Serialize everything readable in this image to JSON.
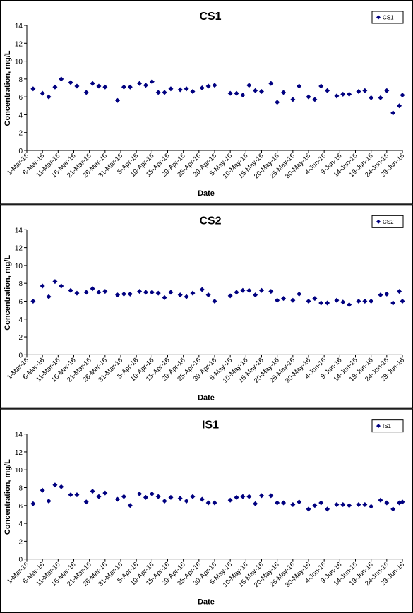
{
  "chart_data": [
    {
      "type": "scatter",
      "title": "CS1",
      "x_label": "Date",
      "y_label": "Concentration, mg/L",
      "legend": "top-right",
      "xlim": [
        "2016-03-01",
        "2016-06-29"
      ],
      "ylim": [
        0,
        14
      ],
      "yticks": [
        0,
        2,
        4,
        6,
        8,
        10,
        12,
        14
      ],
      "xticks": [
        {
          "value": "2016-03-01",
          "label": "1-Mar-16"
        },
        {
          "value": "2016-03-06",
          "label": "6-Mar-16"
        },
        {
          "value": "2016-03-11",
          "label": "11-Mar-16"
        },
        {
          "value": "2016-03-16",
          "label": "16-Mar-16"
        },
        {
          "value": "2016-03-21",
          "label": "21-Mar-16"
        },
        {
          "value": "2016-03-26",
          "label": "26-Mar-16"
        },
        {
          "value": "2016-03-31",
          "label": "31-Mar-16"
        },
        {
          "value": "2016-04-05",
          "label": "5-Apr-16"
        },
        {
          "value": "2016-04-10",
          "label": "10-Apr-16"
        },
        {
          "value": "2016-04-15",
          "label": "15-Apr-16"
        },
        {
          "value": "2016-04-20",
          "label": "20-Apr-16"
        },
        {
          "value": "2016-04-25",
          "label": "25-Apr-16"
        },
        {
          "value": "2016-04-30",
          "label": "30-Apr-16"
        },
        {
          "value": "2016-05-05",
          "label": "5-May-16"
        },
        {
          "value": "2016-05-10",
          "label": "10-May-16"
        },
        {
          "value": "2016-05-15",
          "label": "15-May-16"
        },
        {
          "value": "2016-05-20",
          "label": "20-May-16"
        },
        {
          "value": "2016-05-25",
          "label": "25-May-16"
        },
        {
          "value": "2016-05-30",
          "label": "30-May-16"
        },
        {
          "value": "2016-06-04",
          "label": "4-Jun-16"
        },
        {
          "value": "2016-06-09",
          "label": "9-Jun-16"
        },
        {
          "value": "2016-06-14",
          "label": "14-Jun-16"
        },
        {
          "value": "2016-06-19",
          "label": "19-Jun-16"
        },
        {
          "value": "2016-06-24",
          "label": "24-Jun-16"
        },
        {
          "value": "2016-06-29",
          "label": "29-Jun-16"
        }
      ],
      "x": [
        "2016-03-03",
        "2016-03-06",
        "2016-03-08",
        "2016-03-10",
        "2016-03-12",
        "2016-03-15",
        "2016-03-17",
        "2016-03-20",
        "2016-03-22",
        "2016-03-24",
        "2016-03-26",
        "2016-03-30",
        "2016-04-01",
        "2016-04-03",
        "2016-04-06",
        "2016-04-08",
        "2016-04-10",
        "2016-04-12",
        "2016-04-14",
        "2016-04-16",
        "2016-04-19",
        "2016-04-21",
        "2016-04-23",
        "2016-04-26",
        "2016-04-28",
        "2016-04-30",
        "2016-05-05",
        "2016-05-07",
        "2016-05-09",
        "2016-05-11",
        "2016-05-13",
        "2016-05-15",
        "2016-05-18",
        "2016-05-20",
        "2016-05-22",
        "2016-05-25",
        "2016-05-27",
        "2016-05-30",
        "2016-06-01",
        "2016-06-03",
        "2016-06-05",
        "2016-06-08",
        "2016-06-10",
        "2016-06-12",
        "2016-06-15",
        "2016-06-17",
        "2016-06-19",
        "2016-06-22",
        "2016-06-24",
        "2016-06-26",
        "2016-06-28",
        "2016-06-29"
      ],
      "series": [
        {
          "name": "CS1",
          "color": "#000080",
          "values": [
            6.9,
            6.4,
            6.0,
            7.1,
            8.0,
            7.6,
            7.2,
            6.5,
            7.5,
            7.2,
            7.1,
            5.6,
            7.1,
            7.1,
            7.5,
            7.3,
            7.7,
            6.5,
            6.5,
            6.9,
            6.8,
            6.9,
            6.6,
            7.0,
            7.2,
            7.3,
            6.4,
            6.4,
            6.2,
            7.3,
            6.7,
            6.6,
            7.5,
            5.4,
            6.5,
            5.7,
            7.2,
            6.0,
            5.7,
            7.2,
            6.7,
            6.1,
            6.3,
            6.3,
            6.6,
            6.7,
            5.9,
            5.9,
            6.7,
            4.2,
            5.0,
            6.2
          ]
        }
      ]
    },
    {
      "type": "scatter",
      "title": "CS2",
      "x_label": "Date",
      "y_label": "Concentration, mg/L",
      "legend": "top-right",
      "xlim": [
        "2016-03-01",
        "2016-06-29"
      ],
      "ylim": [
        0,
        14
      ],
      "yticks": [
        0,
        2,
        4,
        6,
        8,
        10,
        12,
        14
      ],
      "xticks": [
        {
          "value": "2016-03-01",
          "label": "1-Mar-16"
        },
        {
          "value": "2016-03-06",
          "label": "6-Mar-16"
        },
        {
          "value": "2016-03-11",
          "label": "11-Mar-16"
        },
        {
          "value": "2016-03-16",
          "label": "16-Mar-16"
        },
        {
          "value": "2016-03-21",
          "label": "21-Mar-16"
        },
        {
          "value": "2016-03-26",
          "label": "26-Mar-16"
        },
        {
          "value": "2016-03-31",
          "label": "31-Mar-16"
        },
        {
          "value": "2016-04-05",
          "label": "5-Apr-16"
        },
        {
          "value": "2016-04-10",
          "label": "10-Apr-16"
        },
        {
          "value": "2016-04-15",
          "label": "15-Apr-16"
        },
        {
          "value": "2016-04-20",
          "label": "20-Apr-16"
        },
        {
          "value": "2016-04-25",
          "label": "25-Apr-16"
        },
        {
          "value": "2016-04-30",
          "label": "30-Apr-16"
        },
        {
          "value": "2016-05-05",
          "label": "5-May-16"
        },
        {
          "value": "2016-05-10",
          "label": "10-May-16"
        },
        {
          "value": "2016-05-15",
          "label": "15-May-16"
        },
        {
          "value": "2016-05-20",
          "label": "20-May-16"
        },
        {
          "value": "2016-05-25",
          "label": "25-May-16"
        },
        {
          "value": "2016-05-30",
          "label": "30-May-16"
        },
        {
          "value": "2016-06-04",
          "label": "4-Jun-16"
        },
        {
          "value": "2016-06-09",
          "label": "9-Jun-16"
        },
        {
          "value": "2016-06-14",
          "label": "14-Jun-16"
        },
        {
          "value": "2016-06-19",
          "label": "19-Jun-16"
        },
        {
          "value": "2016-06-24",
          "label": "24-Jun-16"
        },
        {
          "value": "2016-06-29",
          "label": "29-Jun-16"
        }
      ],
      "x": [
        "2016-03-03",
        "2016-03-06",
        "2016-03-08",
        "2016-03-10",
        "2016-03-12",
        "2016-03-15",
        "2016-03-17",
        "2016-03-20",
        "2016-03-22",
        "2016-03-24",
        "2016-03-26",
        "2016-03-30",
        "2016-04-01",
        "2016-04-03",
        "2016-04-06",
        "2016-04-08",
        "2016-04-10",
        "2016-04-12",
        "2016-04-14",
        "2016-04-16",
        "2016-04-19",
        "2016-04-21",
        "2016-04-23",
        "2016-04-26",
        "2016-04-28",
        "2016-04-30",
        "2016-05-05",
        "2016-05-07",
        "2016-05-09",
        "2016-05-11",
        "2016-05-13",
        "2016-05-15",
        "2016-05-18",
        "2016-05-20",
        "2016-05-22",
        "2016-05-25",
        "2016-05-27",
        "2016-05-30",
        "2016-06-01",
        "2016-06-03",
        "2016-06-05",
        "2016-06-08",
        "2016-06-10",
        "2016-06-12",
        "2016-06-15",
        "2016-06-17",
        "2016-06-19",
        "2016-06-22",
        "2016-06-24",
        "2016-06-26",
        "2016-06-28",
        "2016-06-29"
      ],
      "series": [
        {
          "name": "CS2",
          "color": "#000080",
          "values": [
            6.0,
            7.7,
            6.5,
            8.2,
            7.7,
            7.2,
            6.9,
            7.0,
            7.4,
            7.0,
            7.1,
            6.7,
            6.8,
            6.8,
            7.1,
            7.0,
            7.0,
            6.9,
            6.4,
            7.0,
            6.7,
            6.5,
            6.9,
            7.3,
            6.7,
            6.0,
            6.6,
            7.0,
            7.2,
            7.2,
            6.7,
            7.2,
            7.1,
            6.1,
            6.3,
            6.1,
            6.8,
            6.0,
            6.3,
            5.8,
            5.8,
            6.1,
            5.9,
            5.6,
            6.0,
            6.0,
            6.0,
            6.7,
            6.8,
            5.8,
            7.1,
            6.0
          ]
        }
      ]
    },
    {
      "type": "scatter",
      "title": "IS1",
      "x_label": "Date",
      "y_label": "Concentration, mg/L",
      "legend": "top-right",
      "xlim": [
        "2016-03-01",
        "2016-06-29"
      ],
      "ylim": [
        0,
        14
      ],
      "yticks": [
        0,
        2,
        4,
        6,
        8,
        10,
        12,
        14
      ],
      "xticks": [
        {
          "value": "2016-03-01",
          "label": "1-Mar-16"
        },
        {
          "value": "2016-03-06",
          "label": "6-Mar-16"
        },
        {
          "value": "2016-03-11",
          "label": "11-Mar-16"
        },
        {
          "value": "2016-03-16",
          "label": "16-Mar-16"
        },
        {
          "value": "2016-03-21",
          "label": "21-Mar-16"
        },
        {
          "value": "2016-03-26",
          "label": "26-Mar-16"
        },
        {
          "value": "2016-03-31",
          "label": "31-Mar-16"
        },
        {
          "value": "2016-04-05",
          "label": "5-Apr-16"
        },
        {
          "value": "2016-04-10",
          "label": "10-Apr-16"
        },
        {
          "value": "2016-04-15",
          "label": "15-Apr-16"
        },
        {
          "value": "2016-04-20",
          "label": "20-Apr-16"
        },
        {
          "value": "2016-04-25",
          "label": "25-Apr-16"
        },
        {
          "value": "2016-04-30",
          "label": "30-Apr-16"
        },
        {
          "value": "2016-05-05",
          "label": "5-May-16"
        },
        {
          "value": "2016-05-10",
          "label": "10-May-16"
        },
        {
          "value": "2016-05-15",
          "label": "15-May-16"
        },
        {
          "value": "2016-05-20",
          "label": "20-May-16"
        },
        {
          "value": "2016-05-25",
          "label": "25-May-16"
        },
        {
          "value": "2016-05-30",
          "label": "30-May-16"
        },
        {
          "value": "2016-06-04",
          "label": "4-Jun-16"
        },
        {
          "value": "2016-06-09",
          "label": "9-Jun-16"
        },
        {
          "value": "2016-06-14",
          "label": "14-Jun-16"
        },
        {
          "value": "2016-06-19",
          "label": "19-Jun-16"
        },
        {
          "value": "2016-06-24",
          "label": "24-Jun-16"
        },
        {
          "value": "2016-06-29",
          "label": "29-Jun-16"
        }
      ],
      "x": [
        "2016-03-03",
        "2016-03-06",
        "2016-03-08",
        "2016-03-10",
        "2016-03-12",
        "2016-03-15",
        "2016-03-17",
        "2016-03-20",
        "2016-03-22",
        "2016-03-24",
        "2016-03-26",
        "2016-03-30",
        "2016-04-01",
        "2016-04-03",
        "2016-04-06",
        "2016-04-08",
        "2016-04-10",
        "2016-04-12",
        "2016-04-14",
        "2016-04-16",
        "2016-04-19",
        "2016-04-21",
        "2016-04-23",
        "2016-04-26",
        "2016-04-28",
        "2016-04-30",
        "2016-05-05",
        "2016-05-07",
        "2016-05-09",
        "2016-05-11",
        "2016-05-13",
        "2016-05-15",
        "2016-05-18",
        "2016-05-20",
        "2016-05-22",
        "2016-05-25",
        "2016-05-27",
        "2016-05-30",
        "2016-06-01",
        "2016-06-03",
        "2016-06-05",
        "2016-06-08",
        "2016-06-10",
        "2016-06-12",
        "2016-06-15",
        "2016-06-17",
        "2016-06-19",
        "2016-06-22",
        "2016-06-24",
        "2016-06-26",
        "2016-06-28",
        "2016-06-29"
      ],
      "series": [
        {
          "name": "IS1",
          "color": "#000080",
          "values": [
            6.2,
            7.7,
            6.5,
            8.3,
            8.1,
            7.2,
            7.2,
            6.4,
            7.6,
            7.0,
            7.4,
            6.7,
            7.0,
            6.0,
            7.3,
            6.9,
            7.3,
            7.0,
            6.5,
            6.9,
            6.8,
            6.5,
            7.0,
            6.7,
            6.3,
            6.3,
            6.6,
            6.9,
            7.0,
            7.0,
            6.2,
            7.1,
            7.1,
            6.3,
            6.3,
            6.1,
            6.4,
            5.6,
            6.0,
            6.3,
            5.6,
            6.1,
            6.1,
            6.0,
            6.1,
            6.1,
            5.9,
            6.6,
            6.3,
            5.6,
            6.3,
            6.4
          ]
        }
      ]
    }
  ]
}
